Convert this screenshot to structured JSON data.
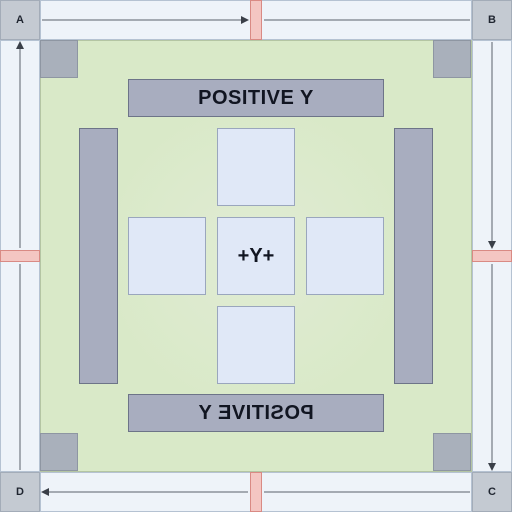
{
  "colors": {
    "background": "#dfe8f4",
    "inner_panel": "#d9e9c8",
    "bar_fill": "#a8adbf",
    "tile_fill": "#e0e8f7",
    "marker": "#f4c6c2",
    "corner_square": "#a9b0bb"
  },
  "corners": {
    "top_left": "A",
    "top_right": "B",
    "bottom_right": "C",
    "bottom_left": "D"
  },
  "banners": {
    "top": "POSITIVE Y",
    "bottom": "POSITIVE Y",
    "bottom_mirrored": true
  },
  "center_tile": {
    "label": "+Y+"
  },
  "flow_direction": "clockwise A → B → C → D → A"
}
